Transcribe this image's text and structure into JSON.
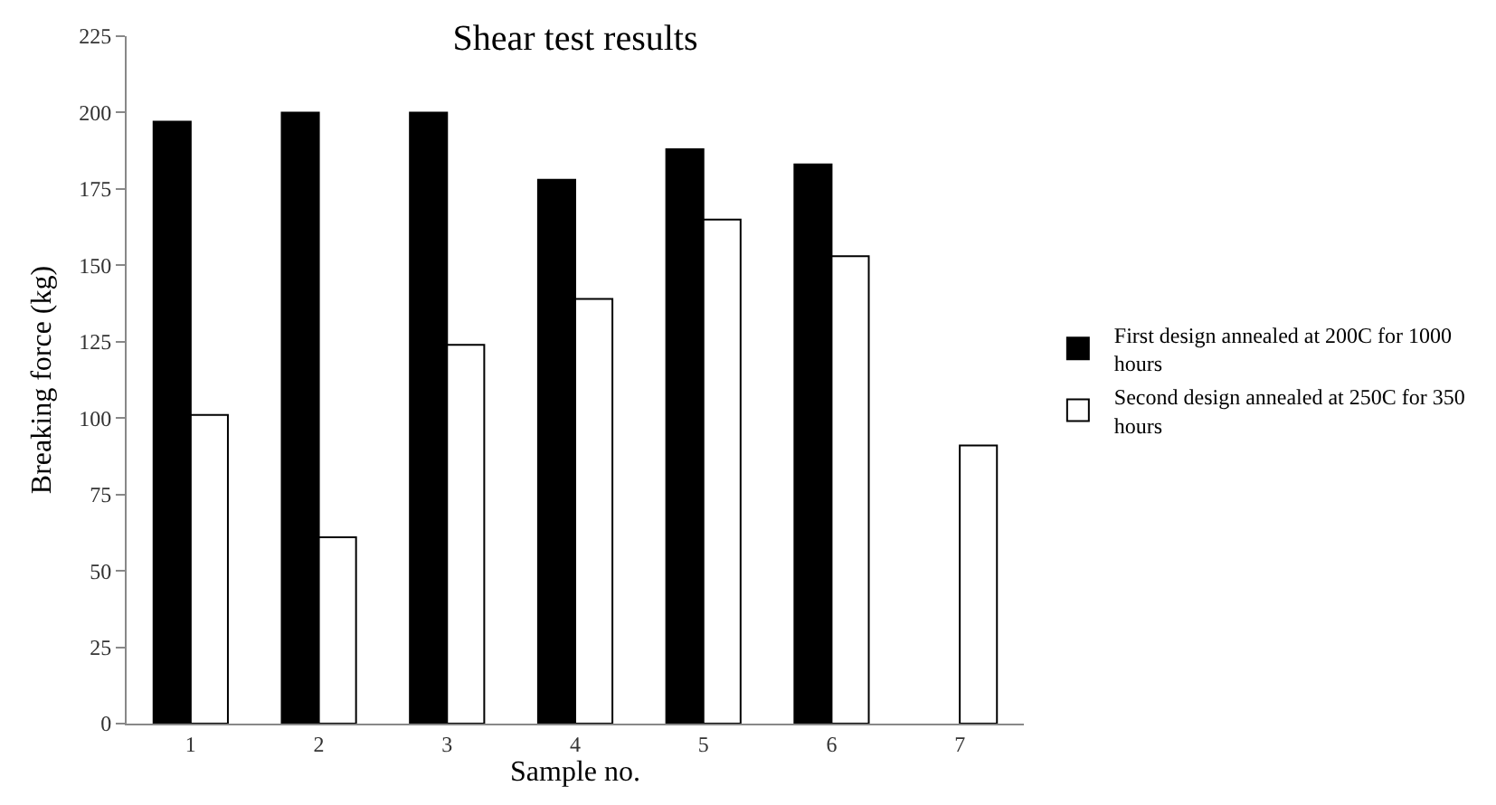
{
  "chart_data": {
    "type": "bar",
    "title": "Shear test results",
    "xlabel": "Sample no.",
    "ylabel": "Breaking force (kg)",
    "categories": [
      "1",
      "2",
      "3",
      "4",
      "5",
      "6",
      "7"
    ],
    "series": [
      {
        "name": "First design annealed at 200C for 1000 hours",
        "color": "#000000",
        "values": [
          197,
          200,
          200,
          178,
          188,
          183,
          null
        ]
      },
      {
        "name": "Second design annealed at 250C for 350 hours",
        "color": "#ffffff",
        "values": [
          101,
          61,
          124,
          139,
          165,
          153,
          91
        ]
      }
    ],
    "ylim": [
      0,
      225
    ],
    "yticks": [
      0,
      25,
      50,
      75,
      100,
      125,
      150,
      175,
      200,
      225
    ],
    "grid": false,
    "legend": "right"
  }
}
